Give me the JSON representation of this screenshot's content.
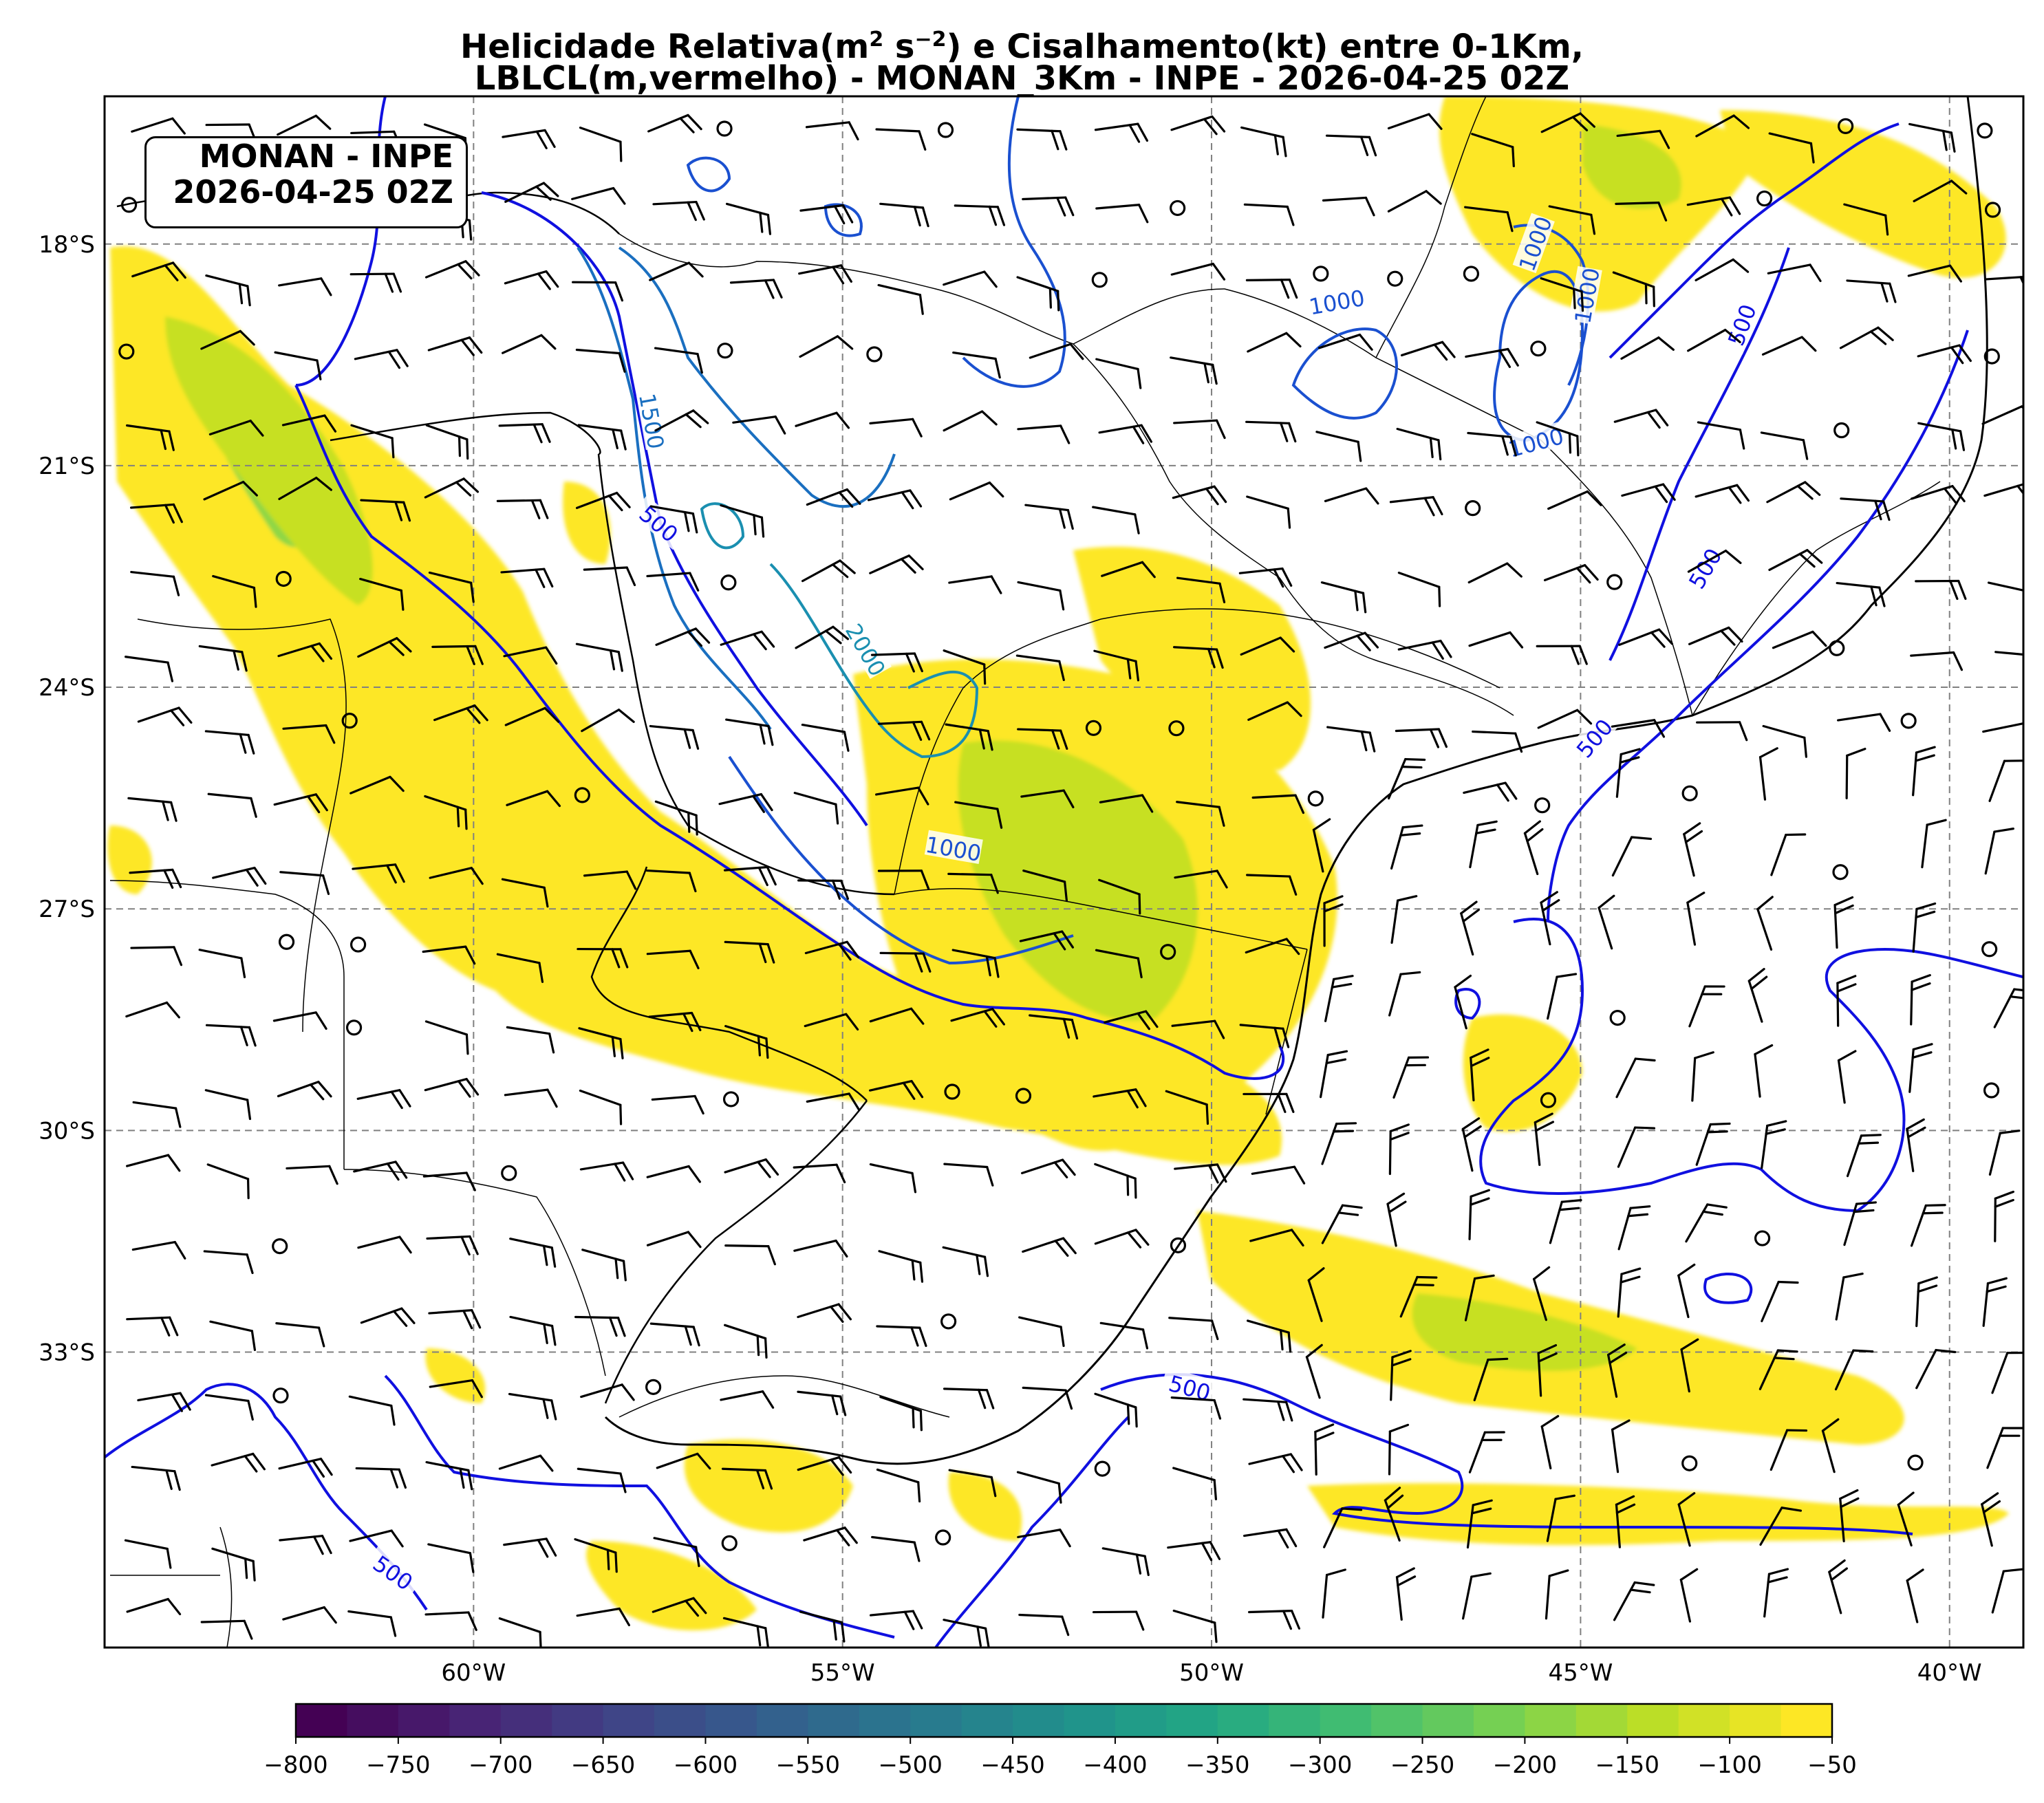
{
  "title": {
    "line1_pre": "Helicidade Relativa(m",
    "line1_sup1": "2",
    "line1_mid": " s",
    "line1_sup2": "−2",
    "line1_post": ") e Cisalhamento(kt) entre 0-1Km,",
    "line2": "LBLCL(m,vermelho) - MONAN_3Km - INPE - 2026-04-25 02Z"
  },
  "info_box": {
    "line1": "MONAN - INPE",
    "line2": "2026-04-25 02Z"
  },
  "map": {
    "lon_range": [
      -65,
      -39
    ],
    "lat_range": [
      -37,
      -16
    ],
    "lon_ticks": [
      {
        "value": -60,
        "label": "60°W"
      },
      {
        "value": -55,
        "label": "55°W"
      },
      {
        "value": -50,
        "label": "50°W"
      },
      {
        "value": -45,
        "label": "45°W"
      },
      {
        "value": -40,
        "label": "40°W"
      }
    ],
    "lat_ticks": [
      {
        "value": -18,
        "label": "18°S"
      },
      {
        "value": -21,
        "label": "21°S"
      },
      {
        "value": -24,
        "label": "24°S"
      },
      {
        "value": -27,
        "label": "27°S"
      },
      {
        "value": -30,
        "label": "30°S"
      },
      {
        "value": -33,
        "label": "33°S"
      }
    ],
    "gridlines": true,
    "fill_colors": [
      "#fde725",
      "#c7e020",
      "#8fd744",
      "#5ec962"
    ],
    "contour_colors": {
      "500": "#1010e0",
      "1000": "#1a50d0",
      "1500": "#1a6fc0",
      "2000": "#1a8fb0"
    },
    "contour_labels": [
      {
        "text": "500",
        "lon": -57.5,
        "lat": -21.8,
        "rot": 40,
        "level": "500"
      },
      {
        "text": "500",
        "lon": -42.8,
        "lat": -19.1,
        "rot": -70,
        "level": "500"
      },
      {
        "text": "500",
        "lon": -43.3,
        "lat": -22.4,
        "rot": -60,
        "level": "500"
      },
      {
        "text": "500",
        "lon": -44.8,
        "lat": -24.7,
        "rot": -50,
        "level": "500"
      },
      {
        "text": "500",
        "lon": -50.3,
        "lat": -33.5,
        "rot": 15,
        "level": "500"
      },
      {
        "text": "500",
        "lon": -61.1,
        "lat": -36.0,
        "rot": 35,
        "level": "500"
      },
      {
        "text": "1000",
        "lon": -48.3,
        "lat": -18.8,
        "rot": -10,
        "level": "1000"
      },
      {
        "text": "1000",
        "lon": -45.6,
        "lat": -18.0,
        "rot": -70,
        "level": "1000"
      },
      {
        "text": "1000",
        "lon": -44.9,
        "lat": -18.7,
        "rot": -80,
        "level": "1000"
      },
      {
        "text": "1000",
        "lon": -45.6,
        "lat": -20.7,
        "rot": -15,
        "level": "1000"
      },
      {
        "text": "1000",
        "lon": -53.5,
        "lat": -26.2,
        "rot": 10,
        "level": "1000"
      },
      {
        "text": "1500",
        "lon": -57.6,
        "lat": -20.4,
        "rot": 80,
        "level": "1500"
      },
      {
        "text": "2000",
        "lon": -54.7,
        "lat": -23.5,
        "rot": 60,
        "level": "2000"
      }
    ]
  },
  "colorbar": {
    "min": -800,
    "max": -50,
    "step": 25,
    "ticks": [
      {
        "value": -800,
        "label": "−800"
      },
      {
        "value": -750,
        "label": "−750"
      },
      {
        "value": -700,
        "label": "−700"
      },
      {
        "value": -650,
        "label": "−650"
      },
      {
        "value": -600,
        "label": "−600"
      },
      {
        "value": -550,
        "label": "−550"
      },
      {
        "value": -500,
        "label": "−500"
      },
      {
        "value": -450,
        "label": "−450"
      },
      {
        "value": -400,
        "label": "−400"
      },
      {
        "value": -350,
        "label": "−350"
      },
      {
        "value": -300,
        "label": "−300"
      },
      {
        "value": -250,
        "label": "−250"
      },
      {
        "value": -200,
        "label": "−200"
      },
      {
        "value": -150,
        "label": "−150"
      },
      {
        "value": -100,
        "label": "−100"
      },
      {
        "value": -50,
        "label": "−50"
      }
    ],
    "colormap": "viridis"
  }
}
